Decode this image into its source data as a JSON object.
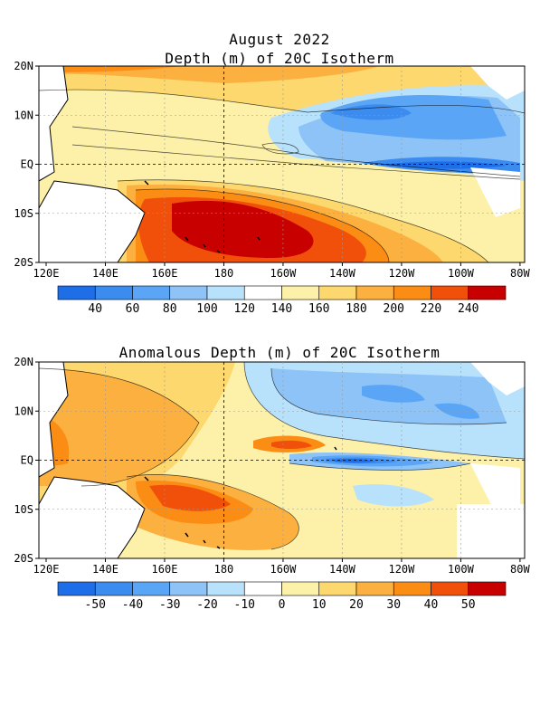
{
  "title_line1": "August 2022",
  "chart_data": [
    {
      "type": "heatmap",
      "title": "Depth (m) of 20C Isotherm",
      "x_ticks": [
        "120E",
        "140E",
        "160E",
        "180",
        "160W",
        "140W",
        "120W",
        "100W",
        "80W"
      ],
      "y_ticks": [
        "20N",
        "10N",
        "EQ",
        "10S",
        "20S"
      ],
      "grid": true,
      "colorbar": {
        "labels": [
          "40",
          "60",
          "80",
          "100",
          "120",
          "140",
          "160",
          "180",
          "200",
          "220",
          "240"
        ],
        "colors": [
          "#1e6ee8",
          "#3c8cf0",
          "#5aa5f5",
          "#8ec3f8",
          "#b8e2fb",
          "#ffffff",
          "#fdf0a8",
          "#fdd86e",
          "#fcb040",
          "#fb8c14",
          "#f0500a",
          "#c80000"
        ]
      }
    },
    {
      "type": "heatmap",
      "title": "Anomalous Depth (m) of 20C Isotherm",
      "x_ticks": [
        "120E",
        "140E",
        "160E",
        "180",
        "160W",
        "140W",
        "120W",
        "100W",
        "80W"
      ],
      "y_ticks": [
        "20N",
        "10N",
        "EQ",
        "10S",
        "20S"
      ],
      "grid": true,
      "colorbar": {
        "labels": [
          "-50",
          "-40",
          "-30",
          "-20",
          "-10",
          "0",
          "10",
          "20",
          "30",
          "40",
          "50"
        ],
        "colors": [
          "#1e6ee8",
          "#3c8cf0",
          "#5aa5f5",
          "#8ec3f8",
          "#b8e2fb",
          "#ffffff",
          "#fdf0a8",
          "#fdd86e",
          "#fcb040",
          "#fb8c14",
          "#f0500a",
          "#c80000"
        ]
      }
    }
  ]
}
